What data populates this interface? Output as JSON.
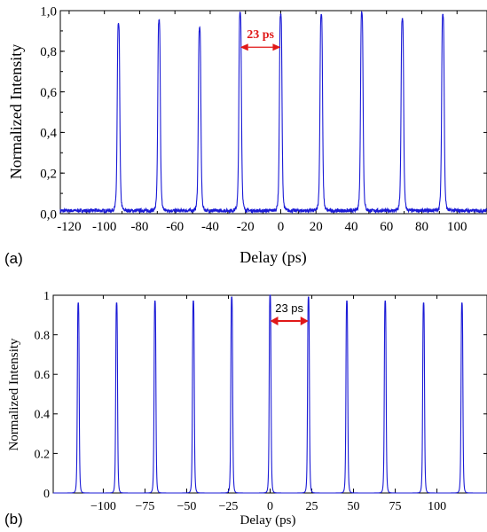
{
  "colors": {
    "trace": "#1a1ad6",
    "annotation": "#e01818",
    "axis": "#000000"
  },
  "chart_data": [
    {
      "panel_label": "(a)",
      "type": "line",
      "xlabel": "Delay (ps)",
      "ylabel": "Normalized Intensity",
      "xlim": [
        -125,
        117
      ],
      "ylim": [
        0,
        1.0
      ],
      "x_ticks": [
        "-120",
        "-100",
        "-80",
        "-60",
        "-40",
        "-20",
        "0",
        "20",
        "40",
        "60",
        "80",
        "100"
      ],
      "x_tick_values": [
        -120,
        -100,
        -80,
        -60,
        -40,
        -20,
        0,
        20,
        40,
        60,
        80,
        100
      ],
      "y_ticks": [
        "0,0",
        "0,2",
        "0,4",
        "0,6",
        "0,8",
        "1,0"
      ],
      "y_tick_values": [
        0,
        0.2,
        0.4,
        0.6,
        0.8,
        1.0
      ],
      "baseline": 0.015,
      "peak_width_ps": 1.6,
      "peaks": [
        {
          "x": -92,
          "y": 0.93
        },
        {
          "x": -69,
          "y": 0.95
        },
        {
          "x": -46,
          "y": 0.91
        },
        {
          "x": -23,
          "y": 0.99
        },
        {
          "x": 0,
          "y": 0.98
        },
        {
          "x": 23,
          "y": 0.98
        },
        {
          "x": 46,
          "y": 0.99
        },
        {
          "x": 69,
          "y": 0.96
        },
        {
          "x": 92,
          "y": 0.98
        }
      ],
      "annotation": {
        "text": "23 ps",
        "from": -23,
        "to": 0,
        "y": 0.82
      },
      "grid": false
    },
    {
      "panel_label": "(b)",
      "type": "line",
      "xlabel": "Delay (ps)",
      "ylabel": "Normalized Intensity",
      "xlim": [
        -130,
        130
      ],
      "ylim": [
        0,
        1
      ],
      "x_ticks": [
        "−100",
        "−75",
        "−50",
        "−25",
        "0",
        "25",
        "50",
        "75",
        "100"
      ],
      "x_tick_values": [
        -100,
        -75,
        -50,
        -25,
        0,
        25,
        50,
        75,
        100
      ],
      "y_ticks": [
        "0",
        "0.2",
        "0.4",
        "0.6",
        "0.8",
        "1"
      ],
      "y_tick_values": [
        0,
        0.2,
        0.4,
        0.6,
        0.8,
        1
      ],
      "baseline": 0,
      "peak_width_ps": 1.2,
      "peaks": [
        {
          "x": -115,
          "y": 0.96
        },
        {
          "x": -92,
          "y": 0.96
        },
        {
          "x": -69,
          "y": 0.97
        },
        {
          "x": -46,
          "y": 0.97
        },
        {
          "x": -23,
          "y": 0.99
        },
        {
          "x": 0,
          "y": 1.0
        },
        {
          "x": 23,
          "y": 0.99
        },
        {
          "x": 46,
          "y": 0.97
        },
        {
          "x": 69,
          "y": 0.97
        },
        {
          "x": 92,
          "y": 0.96
        },
        {
          "x": 115,
          "y": 0.96
        }
      ],
      "annotation": {
        "text": "23 ps",
        "from": 0,
        "to": 23,
        "y": 0.87
      },
      "grid": false
    }
  ]
}
